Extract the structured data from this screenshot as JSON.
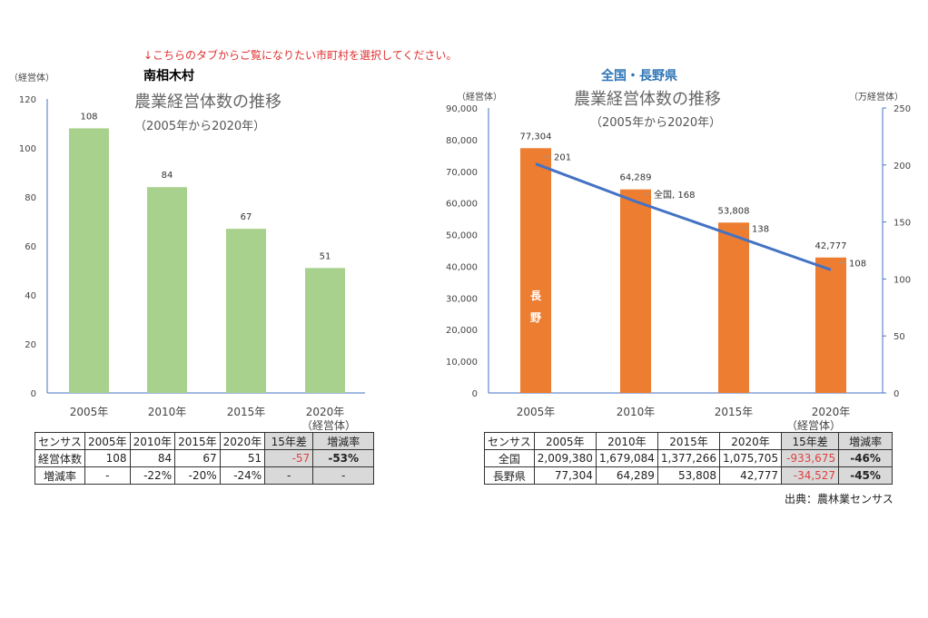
{
  "notice": "↓こちらのタブからご覧になりたい市町村を選択してください。",
  "source": "出典：農林業センサス",
  "chart_data": [
    {
      "type": "bar",
      "heading": "南相木村",
      "title": "農業経営体数の推移",
      "subtitle": "（2005年から2020年）",
      "ylabel": "（経営体）",
      "xlabel": "（経営体）",
      "categories": [
        "2005年",
        "2010年",
        "2015年",
        "2020年"
      ],
      "values": [
        108,
        84,
        67,
        51
      ],
      "ylim": [
        0,
        120
      ],
      "yticks": [
        "0",
        "20",
        "40",
        "60",
        "80",
        "100",
        "120"
      ],
      "bar_color": "#a9d18e",
      "grid": false
    },
    {
      "type": "bar+line",
      "heading": "全国・長野県",
      "heading_color": "#2e75b6",
      "title": "農業経営体数の推移",
      "subtitle": "（2005年から2020年）",
      "ylabel": "（経営体）",
      "y2label": "（万経営体）",
      "xlabel": "（経営体）",
      "categories": [
        "2005年",
        "2010年",
        "2015年",
        "2020年"
      ],
      "series": [
        {
          "name": "長野",
          "type": "bar",
          "values": [
            77304,
            64289,
            53808,
            42777
          ],
          "labels": [
            "77,304",
            "64,289",
            "53,808",
            "42,777"
          ],
          "color": "#ed7d31",
          "axis": "left"
        },
        {
          "name": "全国",
          "type": "line",
          "values": [
            201,
            168,
            138,
            108
          ],
          "labels": [
            "201",
            "全国, 168",
            "138",
            "108"
          ],
          "color": "#4472c4",
          "axis": "right"
        }
      ],
      "ylim": [
        0,
        90000
      ],
      "yticks": [
        "0",
        "10,000",
        "20,000",
        "30,000",
        "40,000",
        "50,000",
        "60,000",
        "70,000",
        "80,000",
        "90,000"
      ],
      "y2lim": [
        0,
        250
      ],
      "y2ticks": [
        "0",
        "50",
        "100",
        "150",
        "200",
        "250"
      ],
      "grid": false
    }
  ],
  "table1": {
    "header": [
      "センサス",
      "2005年",
      "2010年",
      "2015年",
      "2020年",
      "15年差",
      "増減率"
    ],
    "rows": [
      [
        "経営体数",
        "108",
        "84",
        "67",
        "51",
        "-57",
        "-53%"
      ],
      [
        "増減率",
        "-",
        "-22%",
        "-20%",
        "-24%",
        "-",
        "-"
      ]
    ]
  },
  "table2": {
    "header": [
      "センサス",
      "2005年",
      "2010年",
      "2015年",
      "2020年",
      "15年差",
      "増減率"
    ],
    "rows": [
      [
        "全国",
        "2,009,380",
        "1,679,084",
        "1,377,266",
        "1,075,705",
        "-933,675",
        "-46%"
      ],
      [
        "長野県",
        "77,304",
        "64,289",
        "53,808",
        "42,777",
        "-34,527",
        "-45%"
      ]
    ]
  }
}
